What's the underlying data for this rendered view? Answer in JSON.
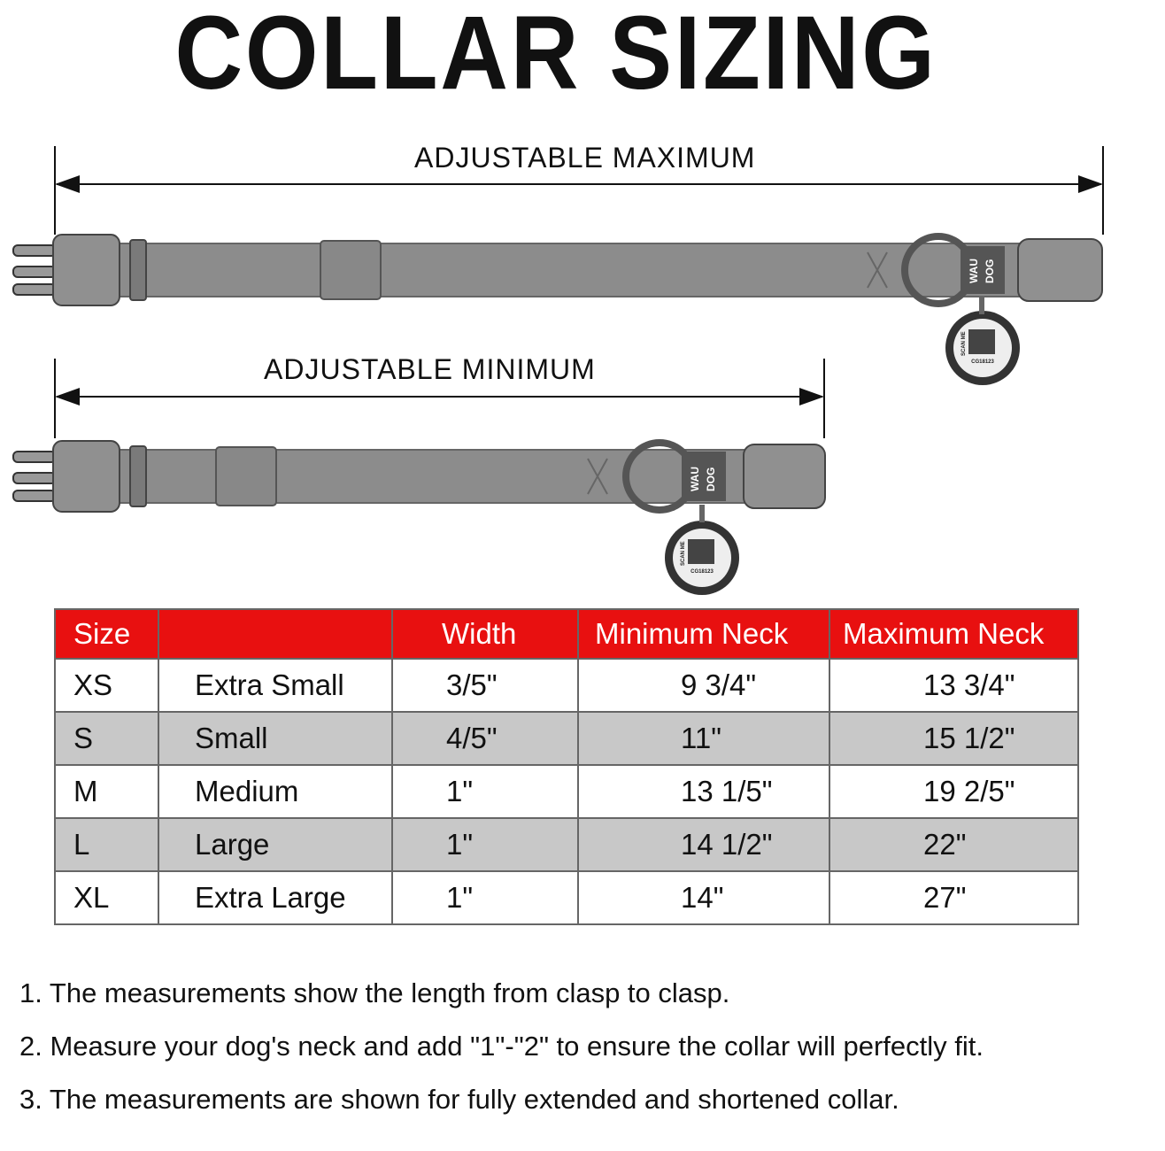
{
  "title": "COLLAR SIZING",
  "dimensions": {
    "max_label": "ADJUSTABLE MAXIMUM",
    "min_label": "ADJUSTABLE MINIMUM"
  },
  "brand": {
    "line1": "WAU",
    "line2": "DOG",
    "tag_text": "SCAN ME",
    "tag_code": "CG18123"
  },
  "colors": {
    "header": "#e81010",
    "alt_row": "#c8c8c8",
    "collar": "#8c8c8c"
  },
  "table": {
    "headers": [
      "Size",
      "",
      "Width",
      "Minimum Neck",
      "Maximum Neck"
    ],
    "rows": [
      [
        "XS",
        "Extra Small",
        "3/5\"",
        "9 3/4\"",
        "13 3/4\""
      ],
      [
        "S",
        "Small",
        "4/5\"",
        "11\"",
        "15 1/2\""
      ],
      [
        "M",
        "Medium",
        "1\"",
        "13 1/5\"",
        "19 2/5\""
      ],
      [
        "L",
        "Large",
        "1\"",
        "14 1/2\"",
        "22\""
      ],
      [
        "XL",
        "Extra Large",
        "1\"",
        "14\"",
        "27\""
      ]
    ]
  },
  "notes": [
    "1. The measurements show the length from clasp to clasp.",
    "2. Measure your dog's neck and add \"1\"-\"2\" to ensure the collar will perfectly fit.",
    "3. The measurements  are shown for fully extended and shortened  collar."
  ]
}
